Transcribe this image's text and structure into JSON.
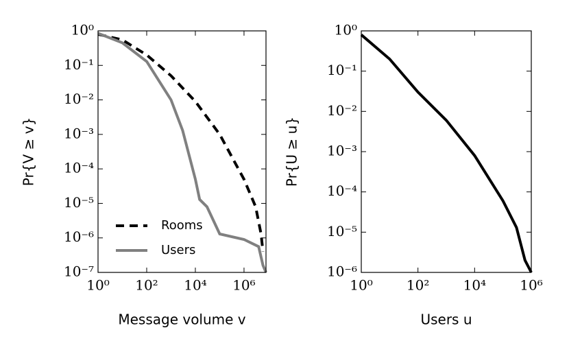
{
  "chart_data": [
    {
      "type": "line",
      "xlabel": "Message volume v",
      "ylabel": "Pr{V ≥ v}",
      "xlog": true,
      "ylog": true,
      "legend": "lower left",
      "xlim": [
        1,
        8000000
      ],
      "ylim": [
        1e-07,
        1
      ],
      "xticks": [
        {
          "value": 1,
          "label": "10⁰"
        },
        {
          "value": 100,
          "label": "10²"
        },
        {
          "value": 10000,
          "label": "10⁴"
        },
        {
          "value": 1000000,
          "label": "10⁶"
        }
      ],
      "yticks": [
        {
          "value": 1e-07,
          "label": "10⁻⁷"
        },
        {
          "value": 1e-06,
          "label": "10⁻⁶"
        },
        {
          "value": 1e-05,
          "label": "10⁻⁵"
        },
        {
          "value": 0.0001,
          "label": "10⁻⁴"
        },
        {
          "value": 0.001,
          "label": "10⁻³"
        },
        {
          "value": 0.01,
          "label": "10⁻²"
        },
        {
          "value": 0.1,
          "label": "10⁻¹"
        },
        {
          "value": 1,
          "label": "10⁰"
        }
      ],
      "series": [
        {
          "name": "Rooms",
          "color": "#000000",
          "linestyle": "dashed",
          "x": [
            1,
            10,
            100,
            1000,
            10000,
            100000,
            1000000,
            3000000,
            5000000,
            6000000
          ],
          "values": [
            0.8,
            0.55,
            0.2,
            0.05,
            0.009,
            0.001,
            5e-05,
            8e-06,
            1.3e-06,
            4e-07
          ]
        },
        {
          "name": "Users",
          "color": "#808080",
          "linestyle": "solid",
          "x": [
            1,
            10,
            100,
            1000,
            3000,
            10000,
            15000,
            30000,
            100000,
            1000000,
            4000000,
            6000000,
            8000000
          ],
          "values": [
            0.85,
            0.45,
            0.13,
            0.01,
            0.0013,
            5e-05,
            1.3e-05,
            8e-06,
            1.3e-06,
            9e-07,
            5.6e-07,
            1.6e-07,
            1e-07
          ]
        }
      ]
    },
    {
      "type": "line",
      "xlabel": "Users u",
      "ylabel": "Pr{U ≥ u}",
      "xlog": true,
      "ylog": true,
      "xlim": [
        1,
        1000000
      ],
      "ylim": [
        1e-06,
        1
      ],
      "xticks": [
        {
          "value": 1,
          "label": "10⁰"
        },
        {
          "value": 100,
          "label": "10²"
        },
        {
          "value": 10000,
          "label": "10⁴"
        },
        {
          "value": 1000000,
          "label": "10⁶"
        }
      ],
      "yticks": [
        {
          "value": 1e-06,
          "label": "10⁻⁶"
        },
        {
          "value": 1e-05,
          "label": "10⁻⁵"
        },
        {
          "value": 0.0001,
          "label": "10⁻⁴"
        },
        {
          "value": 0.001,
          "label": "10⁻³"
        },
        {
          "value": 0.01,
          "label": "10⁻²"
        },
        {
          "value": 0.1,
          "label": "10⁻¹"
        },
        {
          "value": 1,
          "label": "10⁰"
        }
      ],
      "series": [
        {
          "color": "#000000",
          "linestyle": "solid",
          "x": [
            1,
            10,
            100,
            1000,
            10000,
            100000,
            300000,
            600000,
            1000000
          ],
          "values": [
            0.8,
            0.2,
            0.03,
            0.006,
            0.0008,
            6e-05,
            1.3e-05,
            2e-06,
            1e-06
          ]
        }
      ]
    }
  ]
}
